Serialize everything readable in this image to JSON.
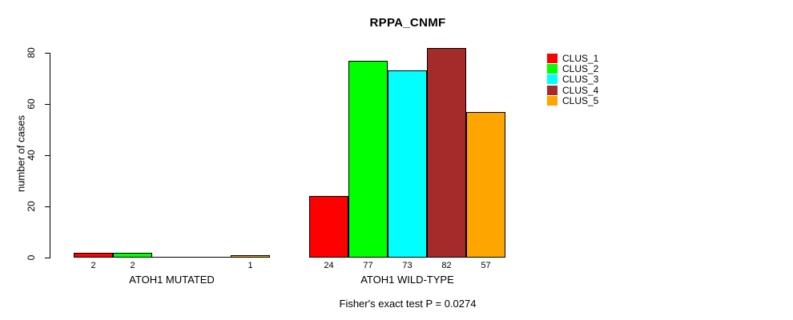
{
  "chart_data": {
    "type": "bar",
    "title": "RPPA_CNMF",
    "ylabel": "number of cases",
    "xlabel": "",
    "yticks": [
      0,
      20,
      40,
      60,
      80
    ],
    "ylim": [
      0,
      82
    ],
    "grid": false,
    "legend_position": "right-outside",
    "bar_value_labels": true,
    "categories": [
      "ATOH1 MUTATED",
      "ATOH1 WILD-TYPE"
    ],
    "series": [
      {
        "name": "CLUS_1",
        "color": "#ff0000",
        "values": [
          2,
          24
        ]
      },
      {
        "name": "CLUS_2",
        "color": "#00ff00",
        "values": [
          2,
          77
        ]
      },
      {
        "name": "CLUS_3",
        "color": "#00ffff",
        "values": [
          0,
          73
        ]
      },
      {
        "name": "CLUS_4",
        "color": "#a52a2a",
        "values": [
          0,
          82
        ]
      },
      {
        "name": "CLUS_5",
        "color": "#ffa500",
        "values": [
          1,
          57
        ]
      }
    ],
    "annotation": "Fisher's exact test P = 0.0274"
  },
  "colors": {
    "background": "#ffffff",
    "axis": "#000000",
    "text": "#000000"
  }
}
